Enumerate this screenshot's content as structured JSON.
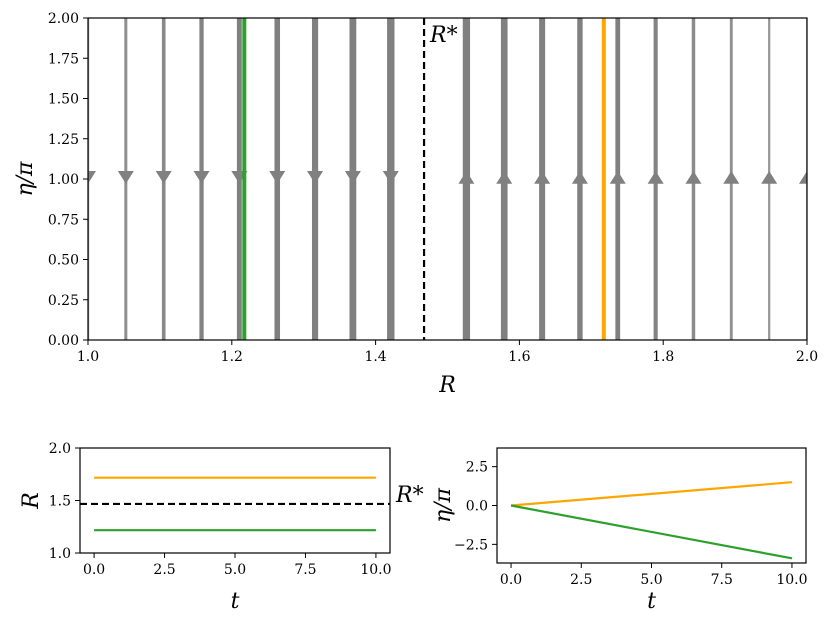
{
  "chart_data": [
    {
      "type": "line",
      "panel": "phase-portrait",
      "xlabel": "R",
      "ylabel": "η/π",
      "xlim": [
        1.0,
        2.0
      ],
      "ylim": [
        0.0,
        2.0
      ],
      "xticks": [
        "1.0",
        "1.2",
        "1.4",
        "1.6",
        "1.8",
        "2.0"
      ],
      "yticks": [
        "0.00",
        "0.25",
        "0.50",
        "0.75",
        "1.00",
        "1.25",
        "1.50",
        "1.75",
        "2.00"
      ],
      "grid": false,
      "critical_line": {
        "x": 1.4674,
        "label": "R*",
        "style": "dashed",
        "color": "#000000"
      },
      "flow_lines": {
        "x": [
          1.0,
          1.0526,
          1.1053,
          1.1579,
          1.2105,
          1.2632,
          1.3158,
          1.3684,
          1.4211,
          1.5263,
          1.5789,
          1.6316,
          1.6842,
          1.7368,
          1.7895,
          1.8421,
          1.8947,
          1.9474,
          2.0
        ],
        "direction": [
          "down",
          "down",
          "down",
          "down",
          "down",
          "down",
          "down",
          "down",
          "down",
          "up",
          "up",
          "up",
          "up",
          "up",
          "up",
          "up",
          "up",
          "up",
          "up"
        ],
        "arrow_y": 1.0,
        "color": "#808080"
      },
      "highlight_lines": [
        {
          "x": 1.2174,
          "color": "#2ca02c"
        },
        {
          "x": 1.7174,
          "color": "#ffa500"
        }
      ]
    },
    {
      "type": "line",
      "panel": "R-vs-t",
      "xlabel": "t",
      "ylabel": "R",
      "xlim": [
        -0.5,
        10.5
      ],
      "ylim": [
        1.0,
        2.0
      ],
      "xticks": [
        "0.0",
        "2.5",
        "5.0",
        "7.5",
        "10.0"
      ],
      "yticks": [
        "1.0",
        "1.5",
        "2.0"
      ],
      "reference_line": {
        "y": 1.4674,
        "label": "R*",
        "style": "dashed"
      },
      "series": [
        {
          "x": [
            0,
            10
          ],
          "values": [
            1.7174,
            1.7174
          ],
          "color": "#ffa500"
        },
        {
          "x": [
            0,
            10
          ],
          "values": [
            1.2174,
            1.2174
          ],
          "color": "#2ca02c"
        }
      ]
    },
    {
      "type": "line",
      "panel": "eta-vs-t",
      "xlabel": "t",
      "ylabel": "η/π",
      "xlim": [
        -0.5,
        10.5
      ],
      "ylim": [
        -3.7,
        3.7
      ],
      "xticks": [
        "0.0",
        "2.5",
        "5.0",
        "7.5",
        "10.0"
      ],
      "yticks": [
        "−2.5",
        "0.0",
        "2.5"
      ],
      "series": [
        {
          "x": [
            0,
            10
          ],
          "values": [
            0.0,
            1.5
          ],
          "color": "#ffa500"
        },
        {
          "x": [
            0,
            10
          ],
          "values": [
            0.0,
            -3.4
          ],
          "color": "#2ca02c"
        }
      ]
    }
  ]
}
